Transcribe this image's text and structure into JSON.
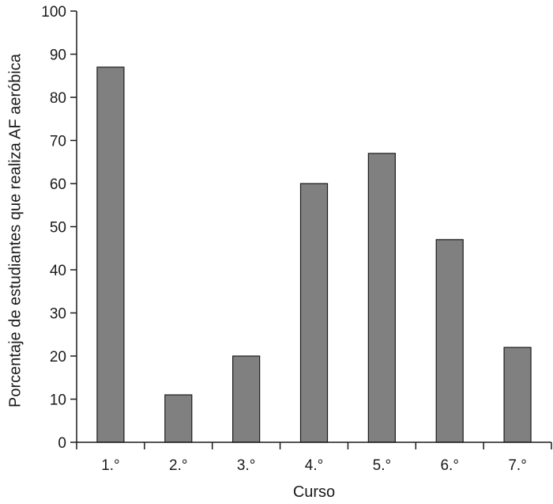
{
  "chart_data": {
    "type": "bar",
    "title": "",
    "xlabel": "Curso",
    "ylabel": "Porcentaje de estudiantes que realiza AF aeróbica",
    "categories": [
      "1.°",
      "2.°",
      "3.°",
      "4.°",
      "5.°",
      "6.°",
      "7.°"
    ],
    "values": [
      87,
      11,
      20,
      60,
      67,
      47,
      22
    ],
    "ylim": [
      0,
      100
    ],
    "yticks": [
      0,
      10,
      20,
      30,
      40,
      50,
      60,
      70,
      80,
      90,
      100
    ],
    "grid": false,
    "legend": "none",
    "colors": {
      "bar": "#808080",
      "bar_edge": "#1a1a1a",
      "axis": "#1a1a1a"
    }
  }
}
